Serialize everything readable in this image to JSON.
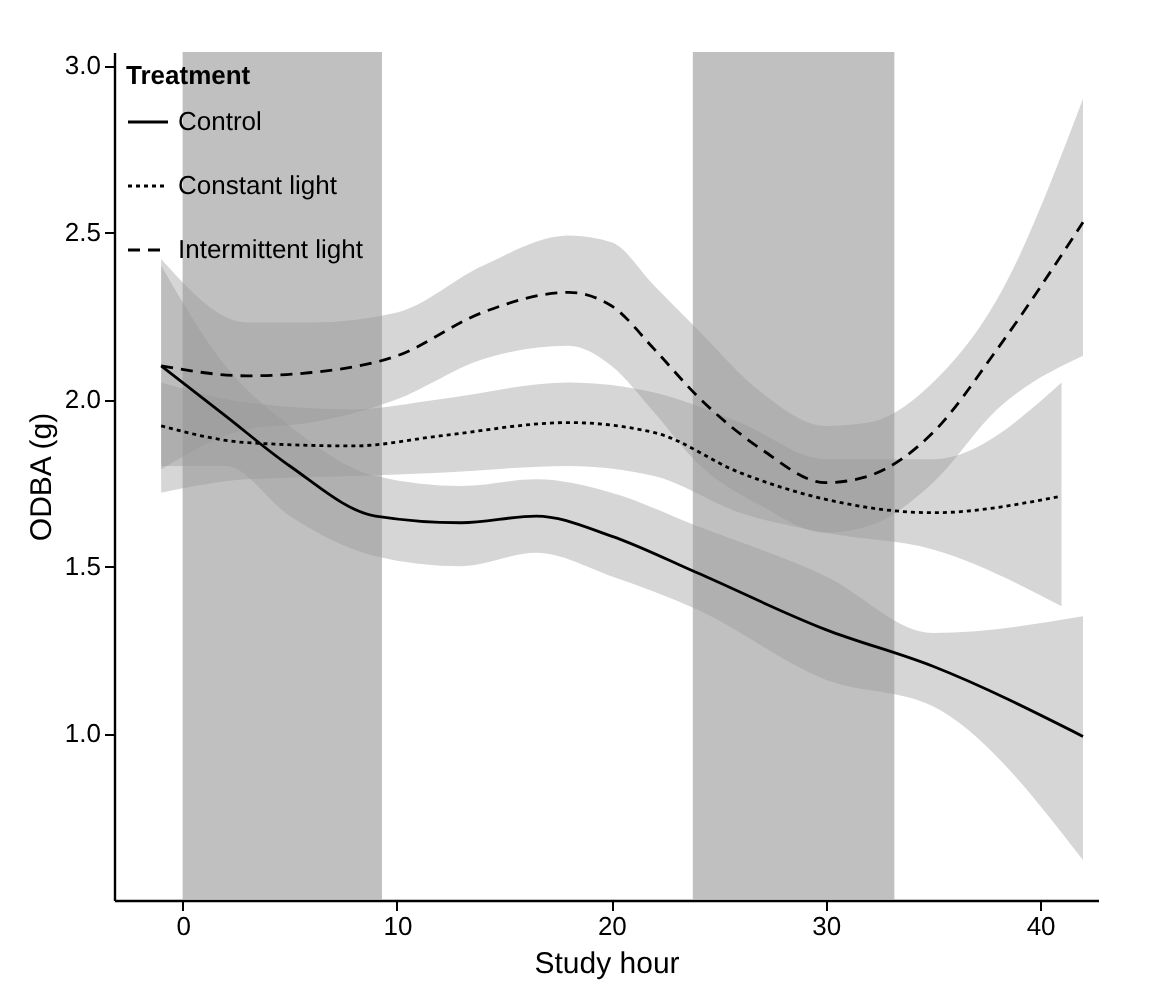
{
  "chart_data": {
    "type": "line",
    "xlabel": "Study hour",
    "ylabel": "ODBA (g)",
    "legend_title": "Treatment",
    "legend": "top left",
    "grid": false,
    "xlim": [
      -3.2,
      42.7
    ],
    "ylim": [
      0.5,
      3.04
    ],
    "xticks": [
      0,
      10,
      20,
      30,
      40
    ],
    "yticks": [
      {
        "value": 1,
        "label": "1.0"
      },
      1.5,
      {
        "value": 2,
        "label": "2.0"
      },
      2.5,
      {
        "value": 3,
        "label": "3.0"
      }
    ],
    "bands": [
      {
        "axis": "x",
        "from": 0,
        "to": 9.3,
        "color": "#b0b0b0"
      },
      {
        "axis": "x",
        "from": 23.8,
        "to": 33.2,
        "color": "#b0b0b0"
      }
    ],
    "series": [
      {
        "name": "Control",
        "color": "#000000",
        "line_style": "solid",
        "x": [
          -1,
          2,
          5,
          9,
          13,
          16.5,
          20,
          24,
          30,
          35,
          42
        ],
        "values": [
          2.1,
          1.95,
          1.8,
          1.65,
          1.63,
          1.65,
          1.59,
          1.48,
          1.31,
          1.2,
          0.99
        ],
        "upper": [
          2.4,
          2.1,
          1.92,
          1.77,
          1.74,
          1.76,
          1.72,
          1.62,
          1.47,
          1.3,
          1.35
        ],
        "lower": [
          1.8,
          1.8,
          1.65,
          1.53,
          1.5,
          1.54,
          1.47,
          1.37,
          1.16,
          1.08,
          0.62
        ]
      },
      {
        "name": "Constant light",
        "color": "#000000",
        "line_style": "dotted",
        "x": [
          -1,
          3,
          8,
          12,
          18,
          22,
          26,
          30,
          35,
          41
        ],
        "values": [
          1.92,
          1.87,
          1.86,
          1.89,
          1.93,
          1.9,
          1.78,
          1.7,
          1.66,
          1.71
        ],
        "upper": [
          2.05,
          1.99,
          1.97,
          2.0,
          2.05,
          2.02,
          1.93,
          1.82,
          1.82,
          2.05
        ],
        "lower": [
          1.72,
          1.76,
          1.77,
          1.78,
          1.8,
          1.77,
          1.66,
          1.6,
          1.55,
          1.38
        ]
      },
      {
        "name": "Intermittent light",
        "color": "#000000",
        "line_style": "dashed",
        "x": [
          -1,
          3,
          6,
          10,
          14,
          18,
          20,
          22,
          24,
          27,
          30,
          32,
          35,
          38,
          42
        ],
        "values": [
          2.1,
          2.07,
          2.08,
          2.13,
          2.26,
          2.32,
          2.28,
          2.15,
          2.01,
          1.85,
          1.75,
          1.77,
          1.9,
          2.15,
          2.53
        ],
        "upper": [
          2.42,
          2.23,
          2.23,
          2.26,
          2.4,
          2.49,
          2.47,
          2.34,
          2.21,
          2.02,
          1.92,
          1.93,
          2.05,
          2.3,
          2.9
        ],
        "lower": [
          1.79,
          1.91,
          1.93,
          2.0,
          2.12,
          2.16,
          2.1,
          1.96,
          1.81,
          1.68,
          1.6,
          1.62,
          1.75,
          1.97,
          2.13
        ]
      }
    ]
  }
}
